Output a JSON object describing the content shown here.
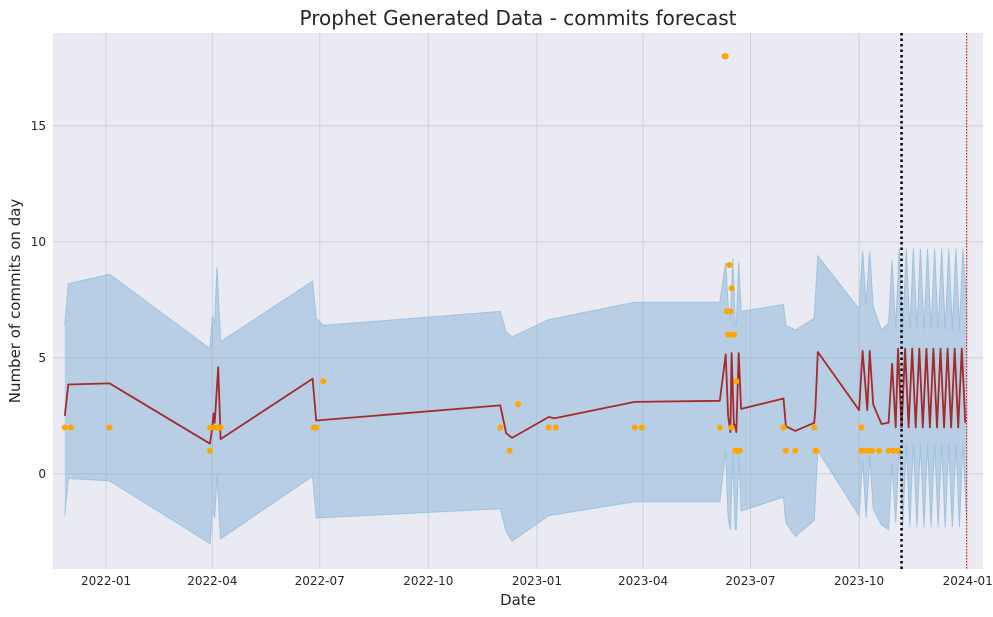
{
  "chart_data": {
    "type": "line",
    "title": "Prophet Generated Data - commits forecast",
    "xlabel": "Date",
    "ylabel": "Number of commits on day",
    "x_ticks": [
      "2022-01-01",
      "2022-04-01",
      "2022-07-01",
      "2022-10-01",
      "2023-01-01",
      "2023-04-01",
      "2023-07-01",
      "2023-10-01",
      "2024-01-01"
    ],
    "x_tick_labels": [
      "2022-01",
      "2022-04",
      "2022-07",
      "2022-10",
      "2023-01",
      "2023-04",
      "2023-07",
      "2023-10",
      "2024-01"
    ],
    "y_ticks": [
      0,
      5,
      10,
      15
    ],
    "y_tick_labels": [
      "0",
      "5",
      "10",
      "15"
    ],
    "xlim": [
      "2021-11-17",
      "2024-01-14"
    ],
    "ylim": [
      -4.1,
      19.0
    ],
    "grid": true,
    "colors": {
      "background": "#eaeaf2",
      "grid": "#cfcfd8",
      "forecast": "#a52a2a",
      "interval": "#7aaed3",
      "interval_line": "#9fc3de",
      "observed": "#ffa500",
      "cutoff": "#000000",
      "horizon": "#ff0000"
    },
    "forecast_line": [
      [
        "2021-11-27",
        2.5
      ],
      [
        "2021-11-30",
        3.85
      ],
      [
        "2022-01-04",
        3.9
      ],
      [
        "2022-03-30",
        1.3
      ],
      [
        "2022-04-01",
        2.0
      ],
      [
        "2022-04-02",
        2.6
      ],
      [
        "2022-04-03",
        2.2
      ],
      [
        "2022-04-06",
        4.6
      ],
      [
        "2022-04-08",
        1.5
      ],
      [
        "2022-06-25",
        4.1
      ],
      [
        "2022-06-28",
        2.3
      ],
      [
        "2022-12-01",
        2.95
      ],
      [
        "2022-12-06",
        1.75
      ],
      [
        "2022-12-11",
        1.55
      ],
      [
        "2023-01-11",
        2.45
      ],
      [
        "2023-01-16",
        2.4
      ],
      [
        "2023-03-25",
        3.1
      ],
      [
        "2023-06-05",
        3.15
      ],
      [
        "2023-06-10",
        5.15
      ],
      [
        "2023-06-12",
        2.5
      ],
      [
        "2023-06-14",
        1.8
      ],
      [
        "2023-06-15",
        5.2
      ],
      [
        "2023-06-17",
        2.0
      ],
      [
        "2023-06-18",
        2.1
      ],
      [
        "2023-06-19",
        1.8
      ],
      [
        "2023-06-21",
        5.2
      ],
      [
        "2023-06-23",
        2.8
      ],
      [
        "2023-07-29",
        3.25
      ],
      [
        "2023-07-31",
        2.05
      ],
      [
        "2023-08-08",
        1.85
      ],
      [
        "2023-08-24",
        2.2
      ],
      [
        "2023-08-25",
        2.8
      ],
      [
        "2023-08-27",
        5.25
      ],
      [
        "2023-10-01",
        2.75
      ],
      [
        "2023-10-04",
        5.3
      ],
      [
        "2023-10-08",
        2.75
      ],
      [
        "2023-10-10",
        5.3
      ],
      [
        "2023-10-13",
        3.0
      ],
      [
        "2023-10-20",
        2.15
      ],
      [
        "2023-10-26",
        2.2
      ],
      [
        "2023-10-29",
        4.75
      ],
      [
        "2023-11-01",
        2.0
      ],
      [
        "2023-11-03",
        5.4
      ],
      [
        "2023-11-06",
        2.0
      ],
      [
        "2023-11-09",
        5.4
      ],
      [
        "2023-11-12",
        2.0
      ],
      [
        "2023-11-15",
        5.4
      ],
      [
        "2023-11-18",
        2.0
      ],
      [
        "2023-11-21",
        5.4
      ],
      [
        "2023-11-24",
        2.0
      ],
      [
        "2023-11-27",
        5.4
      ],
      [
        "2023-11-30",
        2.0
      ],
      [
        "2023-12-03",
        5.4
      ],
      [
        "2023-12-06",
        2.0
      ],
      [
        "2023-12-09",
        5.4
      ],
      [
        "2023-12-12",
        2.0
      ],
      [
        "2023-12-15",
        5.4
      ],
      [
        "2023-12-18",
        2.0
      ],
      [
        "2023-12-21",
        5.4
      ],
      [
        "2023-12-24",
        2.0
      ],
      [
        "2023-12-27",
        5.4
      ],
      [
        "2023-12-30",
        2.2
      ]
    ],
    "interval_upper": [
      [
        "2021-11-27",
        6.4
      ],
      [
        "2021-11-30",
        8.2
      ],
      [
        "2022-01-04",
        8.6
      ],
      [
        "2022-03-30",
        5.4
      ],
      [
        "2022-04-01",
        6.8
      ],
      [
        "2022-04-03",
        6.5
      ],
      [
        "2022-04-05",
        8.9
      ],
      [
        "2022-04-08",
        5.7
      ],
      [
        "2022-06-25",
        8.3
      ],
      [
        "2022-06-28",
        6.7
      ],
      [
        "2022-07-04",
        6.4
      ],
      [
        "2022-12-01",
        7.0
      ],
      [
        "2022-12-06",
        6.1
      ],
      [
        "2022-12-11",
        5.9
      ],
      [
        "2023-01-11",
        6.65
      ],
      [
        "2023-03-25",
        7.4
      ],
      [
        "2023-06-05",
        7.4
      ],
      [
        "2023-06-10",
        9.1
      ],
      [
        "2023-06-12",
        7.3
      ],
      [
        "2023-06-14",
        6.6
      ],
      [
        "2023-06-16",
        9.3
      ],
      [
        "2023-06-18",
        6.5
      ],
      [
        "2023-06-19",
        6.4
      ],
      [
        "2023-06-21",
        9.1
      ],
      [
        "2023-06-23",
        7.0
      ],
      [
        "2023-07-29",
        7.3
      ],
      [
        "2023-07-31",
        6.4
      ],
      [
        "2023-08-08",
        6.2
      ],
      [
        "2023-08-24",
        6.7
      ],
      [
        "2023-08-27",
        9.4
      ],
      [
        "2023-10-01",
        7.1
      ],
      [
        "2023-10-04",
        9.6
      ],
      [
        "2023-10-07",
        7.3
      ],
      [
        "2023-10-10",
        9.6
      ],
      [
        "2023-10-13",
        7.2
      ],
      [
        "2023-10-20",
        6.2
      ],
      [
        "2023-10-26",
        6.5
      ],
      [
        "2023-10-29",
        9.2
      ],
      [
        "2023-11-01",
        6.2
      ],
      [
        "2023-11-04",
        9.7
      ],
      [
        "2023-11-07",
        6.2
      ],
      [
        "2023-11-10",
        9.7
      ],
      [
        "2023-11-13",
        6.2
      ],
      [
        "2023-11-16",
        9.7
      ],
      [
        "2023-11-19",
        6.2
      ],
      [
        "2023-11-22",
        9.7
      ],
      [
        "2023-11-25",
        6.2
      ],
      [
        "2023-11-28",
        9.7
      ],
      [
        "2023-12-01",
        6.2
      ],
      [
        "2023-12-04",
        9.7
      ],
      [
        "2023-12-07",
        6.2
      ],
      [
        "2023-12-10",
        9.7
      ],
      [
        "2023-12-13",
        6.2
      ],
      [
        "2023-12-16",
        9.7
      ],
      [
        "2023-12-19",
        6.2
      ],
      [
        "2023-12-22",
        9.7
      ],
      [
        "2023-12-25",
        6.2
      ],
      [
        "2023-12-28",
        9.7
      ],
      [
        "2023-12-31",
        7.4
      ]
    ],
    "interval_lower": [
      [
        "2021-11-27",
        -1.8
      ],
      [
        "2021-11-30",
        -0.2
      ],
      [
        "2022-01-04",
        -0.3
      ],
      [
        "2022-03-30",
        -3.0
      ],
      [
        "2022-04-01",
        -1.6
      ],
      [
        "2022-04-03",
        -1.9
      ],
      [
        "2022-04-05",
        0.0
      ],
      [
        "2022-04-08",
        -2.8
      ],
      [
        "2022-06-25",
        -0.1
      ],
      [
        "2022-06-28",
        -1.9
      ],
      [
        "2022-12-01",
        -1.5
      ],
      [
        "2022-12-06",
        -2.5
      ],
      [
        "2022-12-11",
        -2.9
      ],
      [
        "2023-01-11",
        -1.8
      ],
      [
        "2023-03-25",
        -1.2
      ],
      [
        "2023-06-05",
        -1.2
      ],
      [
        "2023-06-10",
        1.0
      ],
      [
        "2023-06-12",
        -1.9
      ],
      [
        "2023-06-14",
        -2.4
      ],
      [
        "2023-06-16",
        0.9
      ],
      [
        "2023-06-18",
        -2.4
      ],
      [
        "2023-06-19",
        -2.4
      ],
      [
        "2023-06-21",
        0.8
      ],
      [
        "2023-06-23",
        -1.6
      ],
      [
        "2023-07-29",
        -1.0
      ],
      [
        "2023-07-31",
        -2.1
      ],
      [
        "2023-08-08",
        -2.7
      ],
      [
        "2023-08-24",
        -2.0
      ],
      [
        "2023-08-27",
        1.0
      ],
      [
        "2023-10-01",
        -1.8
      ],
      [
        "2023-10-04",
        0.6
      ],
      [
        "2023-10-07",
        -1.9
      ],
      [
        "2023-10-10",
        0.8
      ],
      [
        "2023-10-13",
        -1.5
      ],
      [
        "2023-10-20",
        -2.2
      ],
      [
        "2023-10-26",
        -2.4
      ],
      [
        "2023-10-29",
        0.5
      ],
      [
        "2023-11-01",
        -2.1
      ],
      [
        "2023-11-04",
        1.3
      ],
      [
        "2023-11-07",
        -2.3
      ],
      [
        "2023-11-10",
        1.3
      ],
      [
        "2023-11-13",
        -2.3
      ],
      [
        "2023-11-16",
        1.3
      ],
      [
        "2023-11-19",
        -2.3
      ],
      [
        "2023-11-22",
        1.3
      ],
      [
        "2023-11-25",
        -2.3
      ],
      [
        "2023-11-28",
        1.3
      ],
      [
        "2023-12-01",
        -2.3
      ],
      [
        "2023-12-04",
        1.3
      ],
      [
        "2023-12-07",
        -2.3
      ],
      [
        "2023-12-10",
        1.3
      ],
      [
        "2023-12-13",
        -2.3
      ],
      [
        "2023-12-16",
        1.3
      ],
      [
        "2023-12-19",
        -2.3
      ],
      [
        "2023-12-22",
        1.3
      ],
      [
        "2023-12-25",
        -2.3
      ],
      [
        "2023-12-28",
        1.3
      ],
      [
        "2023-12-31",
        -2.0
      ]
    ],
    "observed_points": [
      [
        "2021-11-27",
        2
      ],
      [
        "2021-12-02",
        2
      ],
      [
        "2022-01-04",
        2
      ],
      [
        "2022-03-30",
        2
      ],
      [
        "2022-03-30",
        1
      ],
      [
        "2022-04-02",
        2
      ],
      [
        "2022-04-04",
        2
      ],
      [
        "2022-04-06",
        2
      ],
      [
        "2022-04-08",
        2
      ],
      [
        "2022-06-26",
        2
      ],
      [
        "2022-06-28",
        2
      ],
      [
        "2022-07-04",
        4
      ],
      [
        "2022-12-01",
        2
      ],
      [
        "2022-12-09",
        1
      ],
      [
        "2022-12-16",
        3
      ],
      [
        "2023-01-11",
        2
      ],
      [
        "2023-01-17",
        2
      ],
      [
        "2023-03-25",
        2
      ],
      [
        "2023-03-31",
        2
      ],
      [
        "2023-06-05",
        2
      ],
      [
        "2023-06-09",
        18
      ],
      [
        "2023-06-10",
        18
      ],
      [
        "2023-06-11",
        7
      ],
      [
        "2023-06-12",
        6
      ],
      [
        "2023-06-13",
        9
      ],
      [
        "2023-06-14",
        7
      ],
      [
        "2023-06-14",
        6
      ],
      [
        "2023-06-15",
        8
      ],
      [
        "2023-06-15",
        2
      ],
      [
        "2023-06-17",
        6
      ],
      [
        "2023-06-18",
        1
      ],
      [
        "2023-06-19",
        4
      ],
      [
        "2023-06-20",
        1
      ],
      [
        "2023-06-22",
        1
      ],
      [
        "2023-07-29",
        2
      ],
      [
        "2023-07-31",
        1
      ],
      [
        "2023-08-08",
        1
      ],
      [
        "2023-08-24",
        2
      ],
      [
        "2023-08-25",
        1
      ],
      [
        "2023-08-26",
        1
      ],
      [
        "2023-10-03",
        2
      ],
      [
        "2023-10-03",
        1
      ],
      [
        "2023-10-05",
        1
      ],
      [
        "2023-10-09",
        1
      ],
      [
        "2023-10-12",
        1
      ],
      [
        "2023-10-18",
        1
      ],
      [
        "2023-10-26",
        1
      ],
      [
        "2023-10-30",
        1
      ],
      [
        "2023-11-03",
        1
      ]
    ],
    "cutoff_date": "2023-11-06",
    "horizon_date": "2023-12-31"
  }
}
